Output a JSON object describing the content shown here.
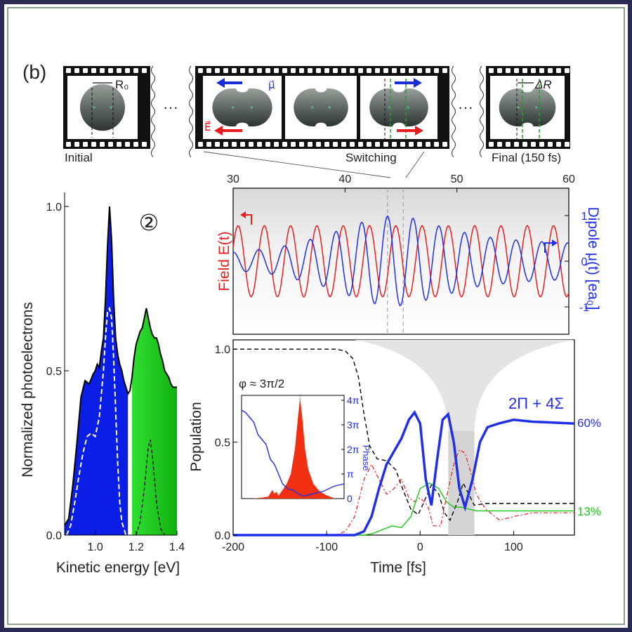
{
  "panel_label": "(b)",
  "filmstrip": {
    "r0_label": "R₀",
    "dr_label": "ΔR",
    "mu_label": "μ⃗",
    "e_label": "E⃗",
    "ellipsis": "···",
    "captions": {
      "initial": "Initial",
      "switching": "Switching",
      "final": "Final (150 fs)"
    }
  },
  "chart_data": [
    {
      "type": "area",
      "id": "spectrum",
      "xlabel": "Kinetic energy [eV]",
      "ylabel": "Normalized photoelectrons",
      "badge": "②",
      "xlim": [
        0.85,
        1.4
      ],
      "ylim": [
        0,
        1.0
      ],
      "xticks": [
        {
          "v": 1.0,
          "t": "1.0"
        },
        {
          "v": 1.2,
          "t": "1.2"
        },
        {
          "v": 1.4,
          "t": "1.4"
        }
      ],
      "yticks": [
        {
          "v": 0,
          "t": "0.0"
        },
        {
          "v": 0.5,
          "t": "0.5"
        },
        {
          "v": 1.0,
          "t": "1.0"
        }
      ],
      "fill_colors": {
        "blue": "#0a1ee6",
        "green": "#18c818"
      },
      "split_x": 1.16,
      "envelope": [
        [
          0.85,
          0.03
        ],
        [
          0.87,
          0.05
        ],
        [
          0.89,
          0.15
        ],
        [
          0.91,
          0.28
        ],
        [
          0.93,
          0.42
        ],
        [
          0.95,
          0.47
        ],
        [
          0.97,
          0.46
        ],
        [
          0.99,
          0.49
        ],
        [
          1.0,
          0.5
        ],
        [
          1.01,
          0.52
        ],
        [
          1.02,
          0.51
        ],
        [
          1.03,
          0.56
        ],
        [
          1.04,
          0.6
        ],
        [
          1.05,
          0.72
        ],
        [
          1.06,
          0.88
        ],
        [
          1.07,
          1.0
        ],
        [
          1.08,
          0.9
        ],
        [
          1.09,
          0.72
        ],
        [
          1.1,
          0.6
        ],
        [
          1.11,
          0.55
        ],
        [
          1.12,
          0.52
        ],
        [
          1.13,
          0.5
        ],
        [
          1.14,
          0.47
        ],
        [
          1.15,
          0.45
        ],
        [
          1.16,
          0.43
        ],
        [
          1.17,
          0.44
        ],
        [
          1.18,
          0.48
        ],
        [
          1.19,
          0.54
        ],
        [
          1.2,
          0.58
        ],
        [
          1.21,
          0.6
        ],
        [
          1.22,
          0.62
        ],
        [
          1.23,
          0.63
        ],
        [
          1.24,
          0.66
        ],
        [
          1.25,
          0.69
        ],
        [
          1.26,
          0.66
        ],
        [
          1.27,
          0.63
        ],
        [
          1.28,
          0.61
        ],
        [
          1.29,
          0.6
        ],
        [
          1.3,
          0.6
        ],
        [
          1.31,
          0.58
        ],
        [
          1.32,
          0.55
        ],
        [
          1.33,
          0.53
        ],
        [
          1.34,
          0.5
        ],
        [
          1.35,
          0.49
        ],
        [
          1.36,
          0.48
        ],
        [
          1.37,
          0.46
        ],
        [
          1.38,
          0.45
        ],
        [
          1.39,
          0.45
        ],
        [
          1.4,
          0.45
        ]
      ],
      "dashed_blue": [
        [
          0.86,
          0.0
        ],
        [
          0.88,
          0.03
        ],
        [
          0.9,
          0.1
        ],
        [
          0.92,
          0.18
        ],
        [
          0.94,
          0.25
        ],
        [
          0.96,
          0.3
        ],
        [
          0.98,
          0.31
        ],
        [
          1.0,
          0.3
        ],
        [
          1.02,
          0.36
        ],
        [
          1.04,
          0.5
        ],
        [
          1.05,
          0.6
        ],
        [
          1.06,
          0.68
        ],
        [
          1.07,
          0.69
        ],
        [
          1.08,
          0.66
        ],
        [
          1.09,
          0.54
        ],
        [
          1.1,
          0.38
        ],
        [
          1.11,
          0.22
        ],
        [
          1.12,
          0.1
        ],
        [
          1.13,
          0.04
        ],
        [
          1.15,
          0.0
        ]
      ],
      "dashed_green": [
        [
          1.2,
          0.0
        ],
        [
          1.22,
          0.04
        ],
        [
          1.24,
          0.14
        ],
        [
          1.26,
          0.27
        ],
        [
          1.27,
          0.29
        ],
        [
          1.28,
          0.24
        ],
        [
          1.3,
          0.1
        ],
        [
          1.32,
          0.02
        ],
        [
          1.34,
          0.0
        ]
      ]
    },
    {
      "type": "line",
      "id": "field-dipole",
      "xlim": [
        30,
        60
      ],
      "xticks": [
        {
          "v": 30,
          "t": "30"
        },
        {
          "v": 40,
          "t": "40"
        },
        {
          "v": 50,
          "t": "50"
        },
        {
          "v": 60,
          "t": "60"
        }
      ],
      "ylabel_left": "Field E(t)",
      "ylabel_right": "Dipole μ(t) [ea₀]",
      "yticks_right": [
        {
          "v": 1,
          "t": "1"
        },
        {
          "v": 0,
          "t": "0"
        },
        {
          "v": -1,
          "t": "-1"
        }
      ],
      "ylim": [
        -1.6,
        1.6
      ],
      "guides_x": [
        43.8,
        45.2
      ],
      "series": [
        {
          "key": "field",
          "color": "#e82020",
          "amp": 0.78,
          "period": 2.35,
          "phase": 0.4
        },
        {
          "key": "dipole",
          "color": "#2030e8",
          "period": 2.3,
          "phase": 1.6,
          "amp_points": [
            [
              30,
              0.2
            ],
            [
              34,
              0.3
            ],
            [
              38,
              0.55
            ],
            [
              42,
              0.9
            ],
            [
              44,
              1.0
            ],
            [
              46,
              0.95
            ],
            [
              48,
              0.8
            ],
            [
              52,
              0.55
            ],
            [
              56,
              0.45
            ],
            [
              60,
              0.4
            ]
          ]
        }
      ]
    },
    {
      "type": "line",
      "id": "population",
      "xlabel": "Time [fs]",
      "ylabel": "Population",
      "xlim": [
        -200,
        165
      ],
      "ylim": [
        0,
        1.05
      ],
      "xticks": [
        {
          "v": -200,
          "t": "-200"
        },
        {
          "v": -100,
          "t": "-100"
        },
        {
          "v": 0,
          "t": "0"
        },
        {
          "v": 100,
          "t": "100"
        }
      ],
      "yticks": [
        {
          "v": 0,
          "t": "0.0"
        },
        {
          "v": 0.5,
          "t": "0.5"
        },
        {
          "v": 1.0,
          "t": "1.0"
        }
      ],
      "band_x": [
        30,
        58
      ],
      "state_label": "2Π + 4Σ",
      "end_labels": [
        {
          "text": "60%",
          "color": "#2030e8",
          "y": 0.6
        },
        {
          "text": "13%",
          "color": "#18c818",
          "y": 0.13
        }
      ],
      "series": [
        {
          "key": "black-dashed",
          "color": "#000000",
          "dash": "6,4",
          "width": 1.4,
          "points": [
            [
              -200,
              1.0
            ],
            [
              -90,
              1.0
            ],
            [
              -80,
              0.99
            ],
            [
              -72,
              0.95
            ],
            [
              -66,
              0.85
            ],
            [
              -60,
              0.65
            ],
            [
              -54,
              0.48
            ],
            [
              -46,
              0.41
            ],
            [
              -36,
              0.4
            ],
            [
              -26,
              0.35
            ],
            [
              -18,
              0.24
            ],
            [
              -10,
              0.14
            ],
            [
              -2,
              0.11
            ],
            [
              6,
              0.2
            ],
            [
              12,
              0.27
            ],
            [
              20,
              0.22
            ],
            [
              26,
              0.12
            ],
            [
              32,
              0.08
            ],
            [
              40,
              0.18
            ],
            [
              46,
              0.28
            ],
            [
              52,
              0.22
            ],
            [
              58,
              0.16
            ],
            [
              70,
              0.17
            ],
            [
              165,
              0.17
            ]
          ]
        },
        {
          "key": "red-dashdot",
          "color": "#e82020",
          "dash": "6,3,2,3",
          "width": 1.2,
          "points": [
            [
              -200,
              0.0
            ],
            [
              -90,
              0.0
            ],
            [
              -80,
              0.02
            ],
            [
              -70,
              0.1
            ],
            [
              -60,
              0.3
            ],
            [
              -52,
              0.38
            ],
            [
              -44,
              0.3
            ],
            [
              -36,
              0.22
            ],
            [
              -28,
              0.25
            ],
            [
              -20,
              0.3
            ],
            [
              -12,
              0.2
            ],
            [
              -6,
              0.18
            ],
            [
              0,
              0.2
            ],
            [
              8,
              0.16
            ],
            [
              14,
              0.05
            ],
            [
              22,
              0.05
            ],
            [
              28,
              0.2
            ],
            [
              36,
              0.38
            ],
            [
              42,
              0.46
            ],
            [
              48,
              0.44
            ],
            [
              54,
              0.34
            ],
            [
              60,
              0.22
            ],
            [
              70,
              0.14
            ],
            [
              85,
              0.08
            ],
            [
              100,
              0.1
            ],
            [
              120,
              0.12
            ],
            [
              165,
              0.12
            ]
          ]
        },
        {
          "key": "green",
          "color": "#18c818",
          "dash": "",
          "width": 1.4,
          "points": [
            [
              -200,
              0.0
            ],
            [
              -60,
              0.0
            ],
            [
              -50,
              0.01
            ],
            [
              -40,
              0.03
            ],
            [
              -30,
              0.05
            ],
            [
              -20,
              0.04
            ],
            [
              -10,
              0.1
            ],
            [
              0,
              0.25
            ],
            [
              10,
              0.28
            ],
            [
              20,
              0.25
            ],
            [
              28,
              0.18
            ],
            [
              36,
              0.15
            ],
            [
              44,
              0.15
            ],
            [
              52,
              0.14
            ],
            [
              60,
              0.13
            ],
            [
              165,
              0.13
            ]
          ]
        },
        {
          "key": "blue-thick",
          "color": "#2030e8",
          "dash": "",
          "width": 3.5,
          "points": [
            [
              -200,
              0.0
            ],
            [
              -70,
              0.0
            ],
            [
              -60,
              0.02
            ],
            [
              -52,
              0.1
            ],
            [
              -44,
              0.25
            ],
            [
              -36,
              0.38
            ],
            [
              -28,
              0.45
            ],
            [
              -20,
              0.52
            ],
            [
              -12,
              0.62
            ],
            [
              -6,
              0.66
            ],
            [
              0,
              0.6
            ],
            [
              6,
              0.3
            ],
            [
              12,
              0.16
            ],
            [
              18,
              0.4
            ],
            [
              24,
              0.62
            ],
            [
              30,
              0.65
            ],
            [
              36,
              0.5
            ],
            [
              42,
              0.25
            ],
            [
              48,
              0.15
            ],
            [
              56,
              0.3
            ],
            [
              64,
              0.5
            ],
            [
              72,
              0.58
            ],
            [
              84,
              0.6
            ],
            [
              100,
              0.62
            ],
            [
              120,
              0.61
            ],
            [
              165,
              0.6
            ]
          ]
        }
      ],
      "inset": {
        "phase_label": "φ ≈ 3π/2",
        "axis_title": "Phase",
        "yticks": [
          {
            "v": 0,
            "t": "0"
          },
          {
            "v": 1,
            "t": "π"
          },
          {
            "v": 2,
            "t": "2π"
          },
          {
            "v": 3,
            "t": "3π"
          },
          {
            "v": 4,
            "t": "4π"
          }
        ],
        "ylim": [
          0,
          4.2
        ],
        "xlim": [
          0,
          1
        ],
        "peak_color": "#f03010",
        "phase_curve": [
          [
            0.0,
            3.6
          ],
          [
            0.04,
            3.5
          ],
          [
            0.08,
            3.3
          ],
          [
            0.12,
            3.1
          ],
          [
            0.16,
            2.6
          ],
          [
            0.2,
            2.4
          ],
          [
            0.24,
            2.2
          ],
          [
            0.28,
            1.6
          ],
          [
            0.32,
            1.4
          ],
          [
            0.36,
            1.0
          ],
          [
            0.4,
            0.6
          ],
          [
            0.45,
            0.4
          ],
          [
            0.5,
            0.35
          ],
          [
            0.55,
            0.2
          ],
          [
            0.6,
            0.1
          ],
          [
            0.65,
            0.15
          ],
          [
            0.7,
            0.2
          ],
          [
            0.8,
            0.3
          ],
          [
            0.9,
            0.5
          ],
          [
            1.0,
            0.6
          ]
        ],
        "spectrum": [
          [
            0.0,
            0.0
          ],
          [
            0.1,
            0.0
          ],
          [
            0.2,
            0.04
          ],
          [
            0.26,
            0.08
          ],
          [
            0.3,
            0.35
          ],
          [
            0.32,
            0.2
          ],
          [
            0.34,
            0.28
          ],
          [
            0.36,
            0.12
          ],
          [
            0.4,
            0.35
          ],
          [
            0.44,
            0.6
          ],
          [
            0.48,
            1.0
          ],
          [
            0.52,
            2.0
          ],
          [
            0.55,
            3.3
          ],
          [
            0.57,
            4.1
          ],
          [
            0.59,
            3.4
          ],
          [
            0.62,
            2.0
          ],
          [
            0.65,
            1.2
          ],
          [
            0.7,
            0.6
          ],
          [
            0.76,
            0.3
          ],
          [
            0.82,
            0.15
          ],
          [
            0.88,
            0.05
          ],
          [
            0.92,
            0.0
          ],
          [
            1.0,
            0.0
          ]
        ]
      }
    }
  ]
}
